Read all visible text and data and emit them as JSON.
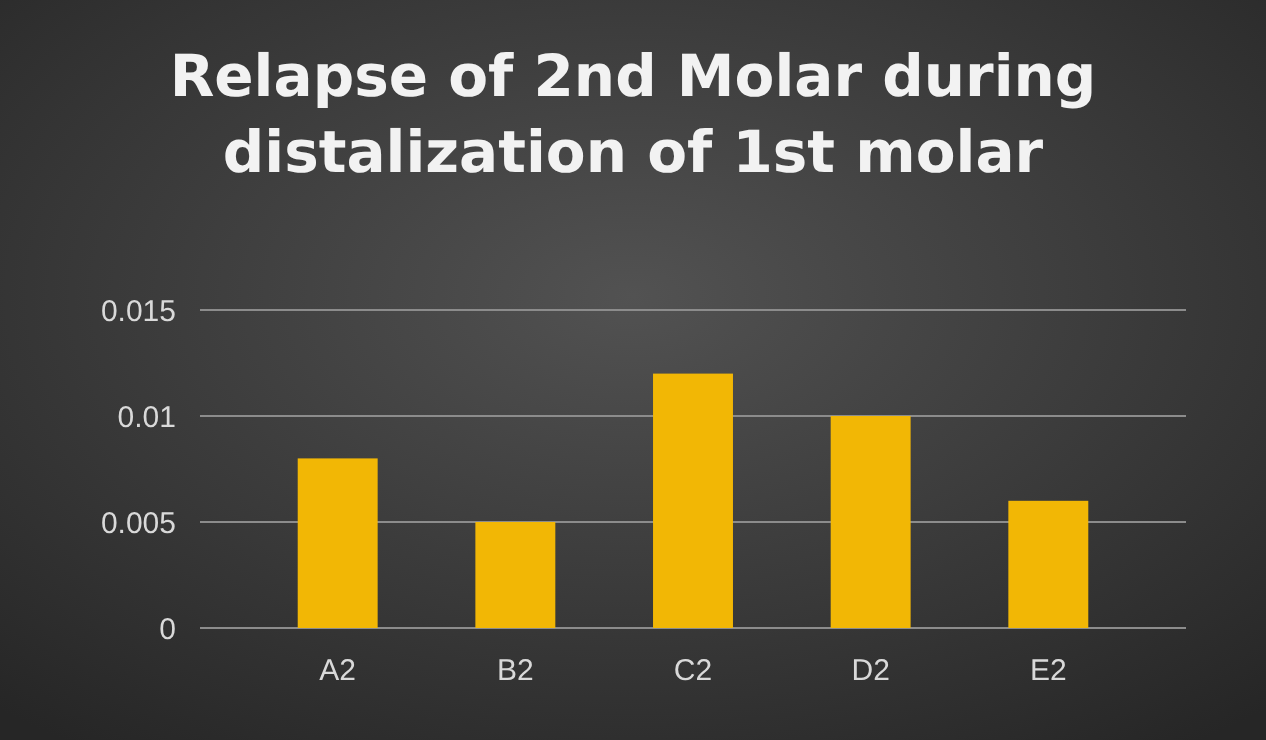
{
  "chart_data": {
    "type": "bar",
    "title": "Relapse of 2nd Molar during distalization of 1st molar",
    "categories": [
      "A2",
      "B2",
      "C2",
      "D2",
      "E2"
    ],
    "values": [
      0.008,
      0.005,
      0.012,
      0.01,
      0.006
    ],
    "color": "#f2b705",
    "ylim": [
      0,
      0.015
    ],
    "yticks": [
      0,
      0.005,
      0.01,
      0.015
    ],
    "grid": "y"
  }
}
